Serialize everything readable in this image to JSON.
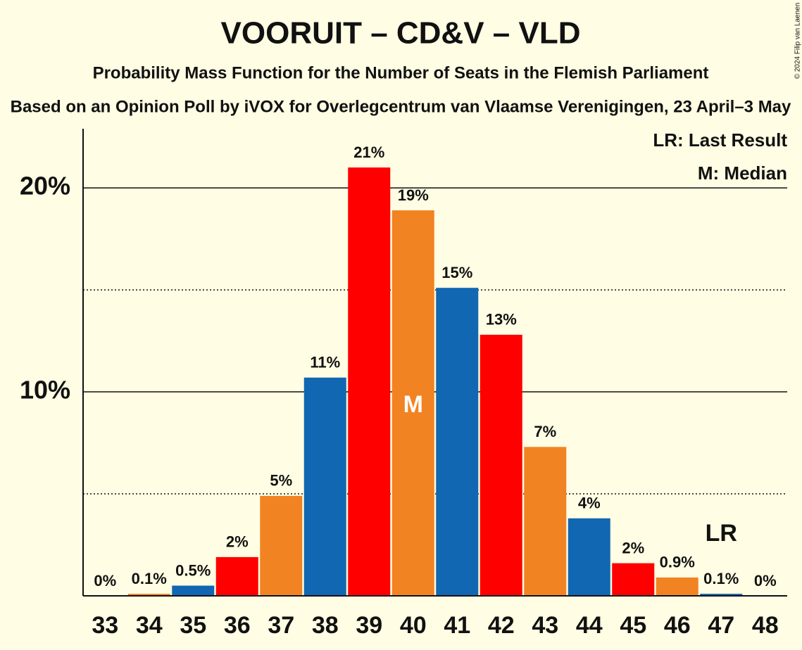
{
  "chart_data": {
    "type": "bar",
    "title": "VOORUIT – CD&V – VLD",
    "subtitle": "Probability Mass Function for the Number of Seats in the Flemish Parliament",
    "subtitle2": "Based on an Opinion Poll by iVOX for Overlegcentrum van Vlaamse Verenigingen, 23 April–3 May",
    "copyright": "© 2024 Filip van Laenen",
    "categories": [
      33,
      34,
      35,
      36,
      37,
      38,
      39,
      40,
      41,
      42,
      43,
      44,
      45,
      46,
      47,
      48
    ],
    "values": [
      0,
      0.1,
      0.5,
      1.9,
      4.9,
      10.7,
      21.0,
      18.9,
      15.1,
      12.8,
      7.3,
      3.8,
      1.6,
      0.9,
      0.1,
      0
    ],
    "value_labels": [
      "0%",
      "0.1%",
      "0.5%",
      "2%",
      "5%",
      "11%",
      "21%",
      "19%",
      "15%",
      "13%",
      "7%",
      "4%",
      "2%",
      "0.9%",
      "0.1%",
      "0%"
    ],
    "colors": [
      "#ff0000",
      "#f28322",
      "#1167b1",
      "#ff0000",
      "#f28322",
      "#1167b1",
      "#ff0000",
      "#f28322",
      "#1167b1",
      "#ff0000",
      "#f28322",
      "#1167b1",
      "#ff0000",
      "#f28322",
      "#1167b1",
      "#ff0000"
    ],
    "ylim": [
      0,
      22.9
    ],
    "yticks": [
      {
        "value": 10,
        "label": "10%"
      },
      {
        "value": 20,
        "label": "20%"
      }
    ],
    "minor_yticks": [
      5,
      15
    ],
    "grid": true,
    "legend": [
      "LR: Last Result",
      "M: Median"
    ],
    "annotations": [
      {
        "text": "M",
        "category": 40
      },
      {
        "text": "LR",
        "category": 47
      }
    ]
  }
}
